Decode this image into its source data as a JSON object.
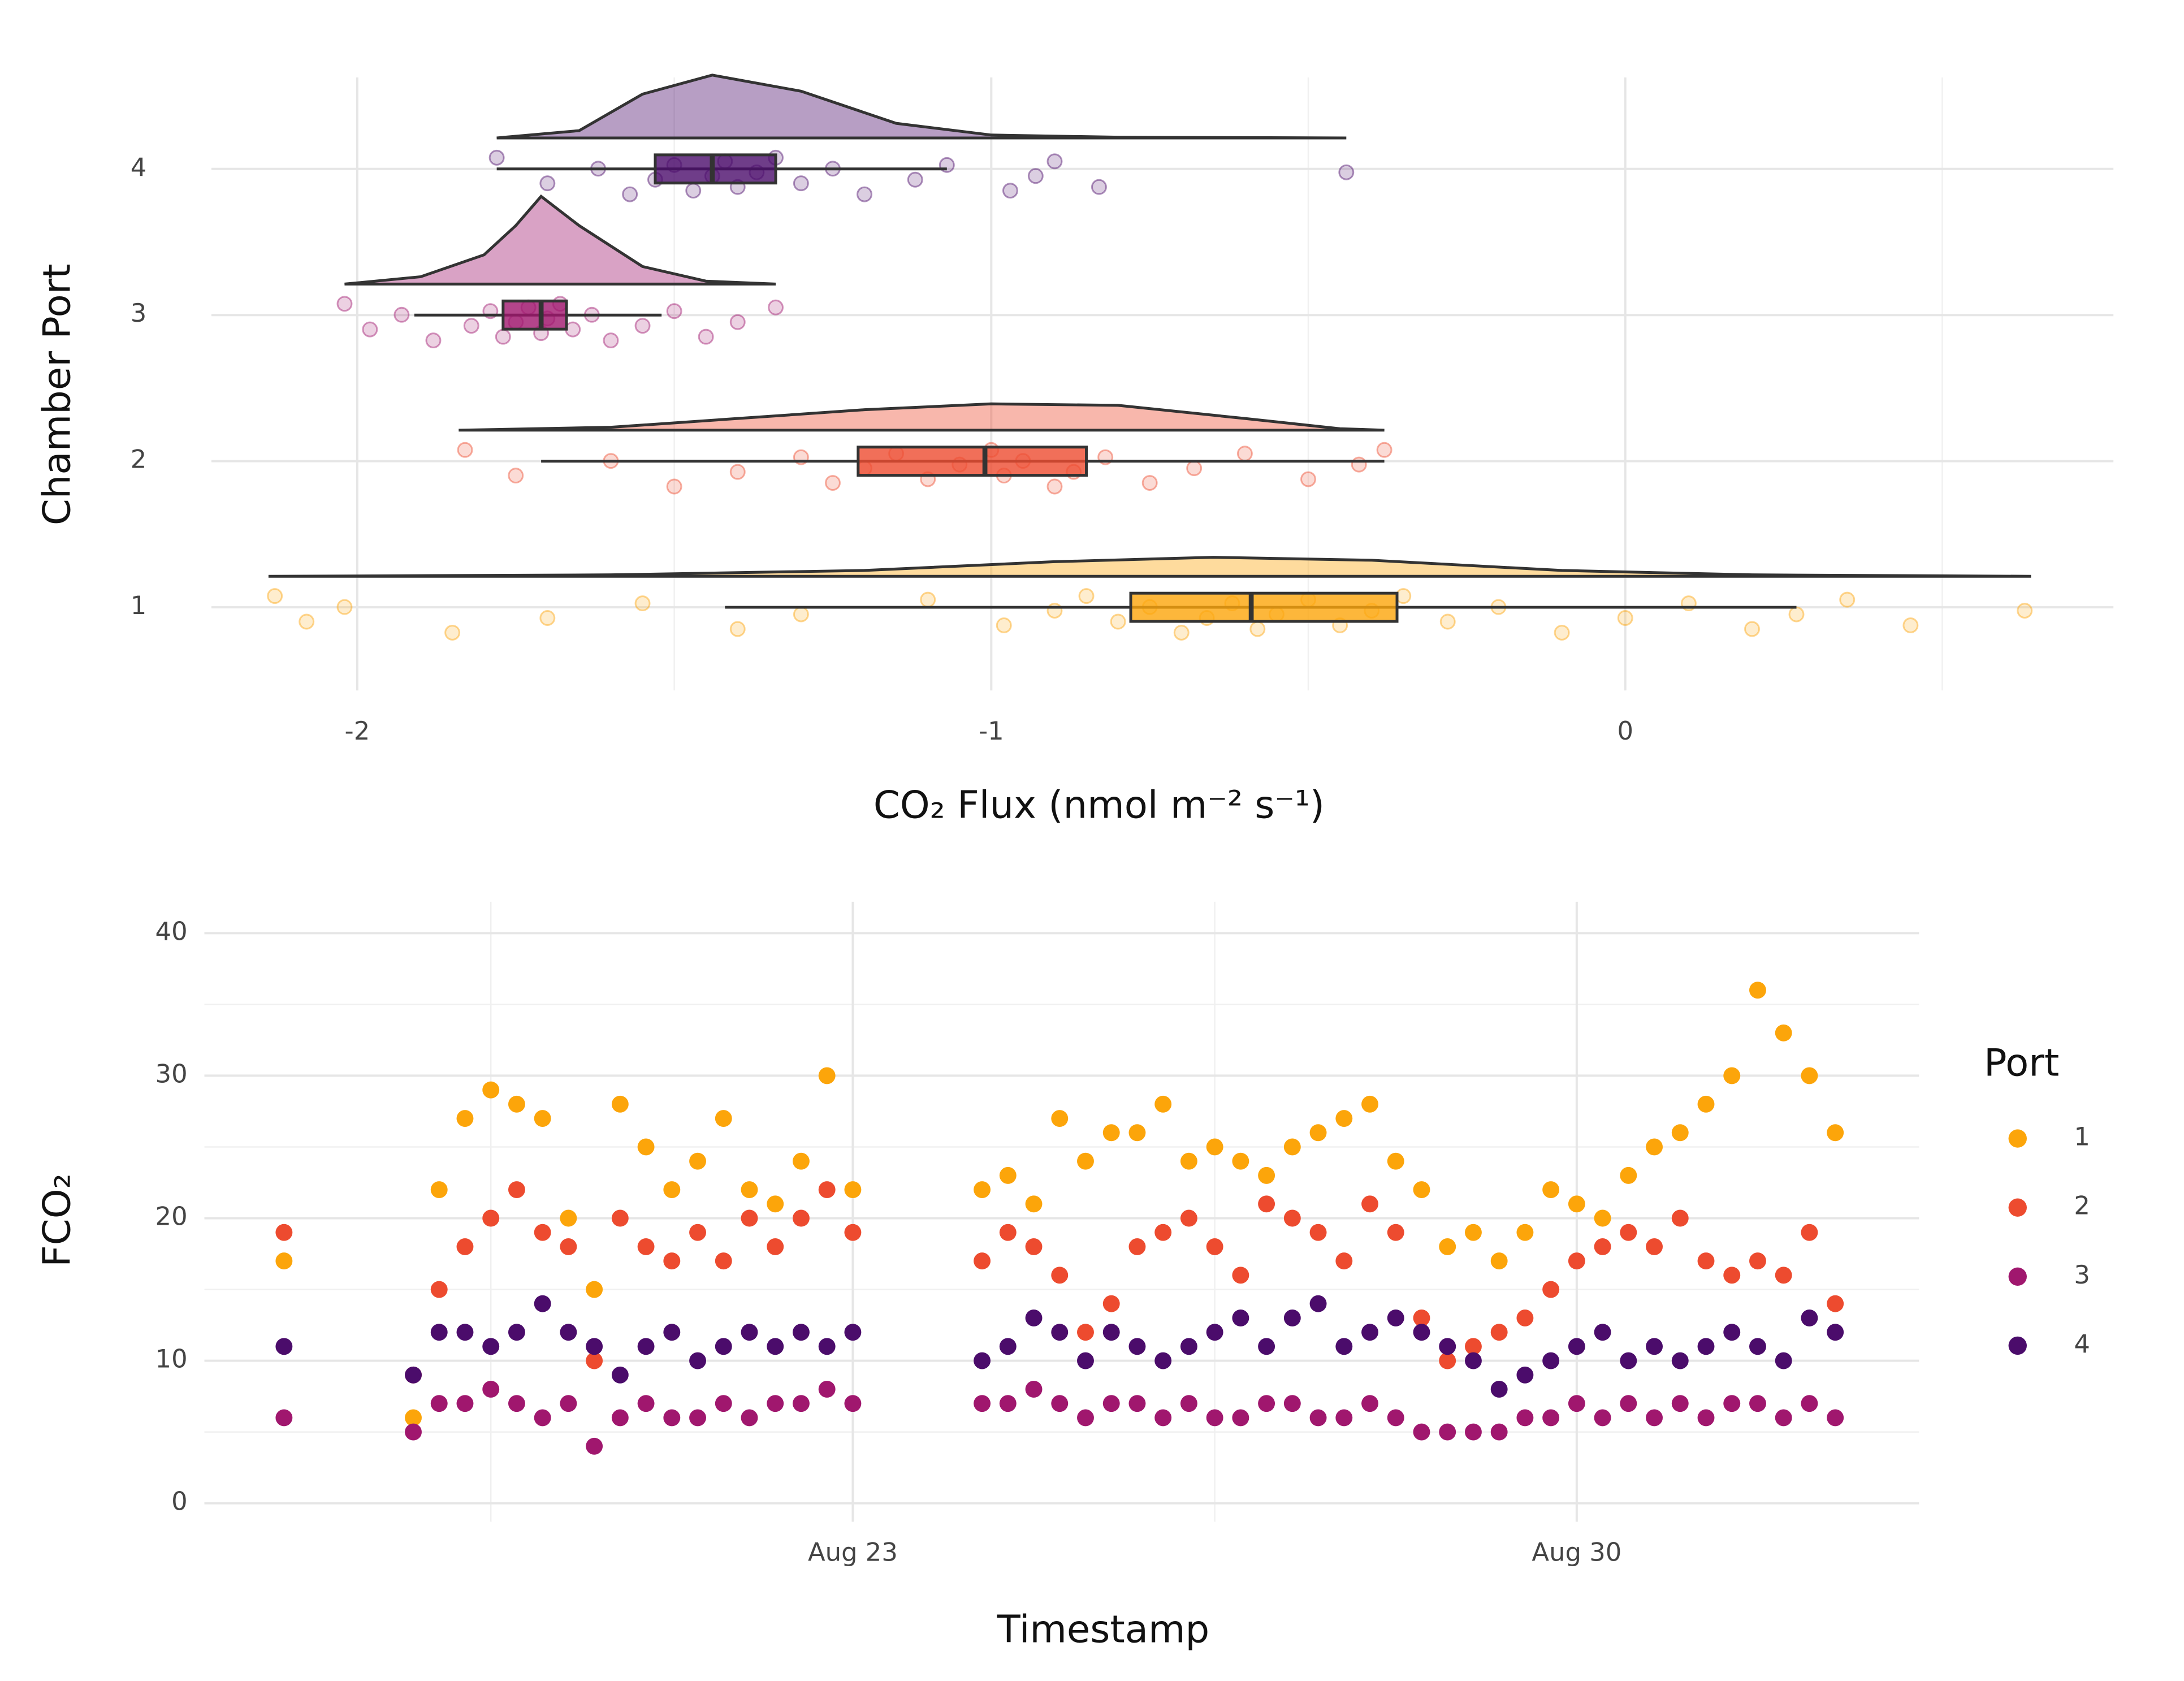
{
  "chart_data": [
    {
      "type": "raincloud",
      "xlabel": "CO₂ Flux (nmol m⁻² s⁻¹)",
      "ylabel": "Chamber Port",
      "categories": [
        "1",
        "2",
        "3",
        "4"
      ],
      "xlim": [
        -2.23,
        0.77
      ],
      "xticks": [
        -2,
        -1,
        0
      ],
      "xminor": [
        -1.5,
        -0.5,
        0.5
      ],
      "grid": true,
      "series": [
        {
          "color": "#fca50a",
          "min": -1.42,
          "q1": -0.78,
          "median": -0.59,
          "q3": -0.36,
          "max": 0.27,
          "density_x": [
            -2.14,
            -1.6,
            -1.2,
            -0.9,
            -0.65,
            -0.4,
            -0.1,
            0.2,
            0.64
          ],
          "density": [
            0,
            0.01,
            0.04,
            0.1,
            0.13,
            0.11,
            0.04,
            0.01,
            0
          ],
          "points": [
            -2.13,
            -2.08,
            -2.02,
            -1.85,
            -1.7,
            -1.55,
            -1.4,
            -1.3,
            -1.1,
            -0.98,
            -0.9,
            -0.85,
            -0.8,
            -0.75,
            -0.7,
            -0.66,
            -0.62,
            -0.58,
            -0.55,
            -0.5,
            -0.45,
            -0.4,
            -0.35,
            -0.28,
            -0.2,
            -0.1,
            0.0,
            0.1,
            0.2,
            0.27,
            0.35,
            0.45,
            0.63
          ]
        },
        {
          "color": "#ed4b2f",
          "min": -1.71,
          "q1": -1.21,
          "median": -1.01,
          "q3": -0.85,
          "max": -0.38,
          "density_x": [
            -1.84,
            -1.6,
            -1.4,
            -1.2,
            -1.0,
            -0.8,
            -0.6,
            -0.45,
            -0.38
          ],
          "density": [
            0,
            0.02,
            0.08,
            0.14,
            0.18,
            0.17,
            0.08,
            0.01,
            0
          ],
          "points": [
            -1.83,
            -1.75,
            -1.6,
            -1.5,
            -1.4,
            -1.3,
            -1.25,
            -1.2,
            -1.15,
            -1.1,
            -1.05,
            -1.0,
            -0.98,
            -0.95,
            -0.9,
            -0.87,
            -0.82,
            -0.75,
            -0.68,
            -0.6,
            -0.5,
            -0.42,
            -0.38
          ]
        },
        {
          "color": "#a0176e",
          "min": -1.91,
          "q1": -1.77,
          "median": -1.71,
          "q3": -1.67,
          "max": -1.52,
          "density_x": [
            -2.02,
            -1.9,
            -1.8,
            -1.75,
            -1.71,
            -1.65,
            -1.55,
            -1.45,
            -1.34
          ],
          "density": [
            0,
            0.05,
            0.2,
            0.4,
            0.6,
            0.4,
            0.12,
            0.02,
            0
          ],
          "points": [
            -2.02,
            -1.98,
            -1.93,
            -1.88,
            -1.82,
            -1.79,
            -1.77,
            -1.75,
            -1.73,
            -1.71,
            -1.7,
            -1.68,
            -1.66,
            -1.63,
            -1.6,
            -1.55,
            -1.5,
            -1.45,
            -1.4,
            -1.34
          ]
        },
        {
          "color": "#4b0c6b",
          "min": -1.78,
          "q1": -1.53,
          "median": -1.44,
          "q3": -1.34,
          "max": -1.07,
          "density_x": [
            -1.78,
            -1.65,
            -1.55,
            -1.44,
            -1.3,
            -1.15,
            -1.0,
            -0.8,
            -0.44
          ],
          "density": [
            0,
            0.05,
            0.3,
            0.43,
            0.32,
            0.1,
            0.02,
            0.005,
            0
          ],
          "points": [
            -1.78,
            -1.7,
            -1.62,
            -1.57,
            -1.53,
            -1.5,
            -1.47,
            -1.44,
            -1.42,
            -1.4,
            -1.37,
            -1.34,
            -1.3,
            -1.25,
            -1.2,
            -1.12,
            -1.07,
            -0.97,
            -0.93,
            -0.9,
            -0.83,
            -0.44
          ]
        }
      ]
    },
    {
      "type": "scatter",
      "xlabel": "Timestamp",
      "ylabel": "FCO₂",
      "legend_title": "Port",
      "legend": "right",
      "xlim": [
        16.73,
        33.31
      ],
      "xticks": [
        {
          "value": 23,
          "label": "Aug 23"
        },
        {
          "value": 30,
          "label": "Aug 30"
        }
      ],
      "xminor": [
        19.5,
        26.5
      ],
      "ylim": [
        -1.3,
        42.2
      ],
      "yticks": [
        0,
        10,
        20,
        30,
        40
      ],
      "yminor": [
        5,
        15,
        25,
        35
      ],
      "grid": true,
      "x": [
        17.5,
        18.75,
        19,
        19.25,
        19.5,
        19.75,
        20,
        20.25,
        20.5,
        20.75,
        21,
        21.25,
        21.5,
        21.75,
        22,
        22.25,
        22.5,
        22.75,
        23,
        24.25,
        24.5,
        24.75,
        25,
        25.25,
        25.5,
        25.75,
        26,
        26.25,
        26.5,
        26.75,
        27,
        27.25,
        27.5,
        27.75,
        28,
        28.25,
        28.5,
        28.75,
        29,
        29.25,
        29.5,
        29.75,
        30,
        30.25,
        30.5,
        30.75,
        31,
        31.25,
        31.5,
        31.75,
        32,
        32.25,
        32.5
      ],
      "series": [
        {
          "name": "1",
          "color": "#fca50a",
          "values": [
            17,
            6,
            22,
            27,
            29,
            28,
            27,
            20,
            15,
            28,
            25,
            22,
            24,
            27,
            22,
            21,
            24,
            30,
            22,
            22,
            23,
            21,
            27,
            24,
            26,
            26,
            28,
            24,
            25,
            24,
            23,
            25,
            26,
            27,
            28,
            24,
            22,
            18,
            19,
            17,
            19,
            22,
            21,
            20,
            23,
            25,
            26,
            28,
            30,
            36,
            33,
            30,
            26
          ]
        },
        {
          "name": "2",
          "color": "#ed4b2f",
          "values": [
            19,
            9,
            15,
            18,
            20,
            22,
            19,
            18,
            10,
            20,
            18,
            17,
            19,
            17,
            20,
            18,
            20,
            22,
            19,
            17,
            19,
            18,
            16,
            12,
            14,
            18,
            19,
            20,
            18,
            16,
            21,
            20,
            19,
            17,
            21,
            19,
            13,
            10,
            11,
            12,
            13,
            15,
            17,
            18,
            19,
            18,
            20,
            17,
            16,
            17,
            16,
            19,
            14
          ]
        },
        {
          "name": "3",
          "color": "#a0176e",
          "values": [
            6,
            5,
            7,
            7,
            8,
            7,
            6,
            7,
            4,
            6,
            7,
            6,
            6,
            7,
            6,
            7,
            7,
            8,
            7,
            7,
            7,
            8,
            7,
            6,
            7,
            7,
            6,
            7,
            6,
            6,
            7,
            7,
            6,
            6,
            7,
            6,
            5,
            5,
            5,
            5,
            6,
            6,
            7,
            6,
            7,
            6,
            7,
            6,
            7,
            7,
            6,
            7,
            6
          ]
        },
        {
          "name": "4",
          "color": "#4b0c6b",
          "values": [
            11,
            9,
            12,
            12,
            11,
            12,
            14,
            12,
            11,
            9,
            11,
            12,
            10,
            11,
            12,
            11,
            12,
            11,
            12,
            10,
            11,
            13,
            12,
            10,
            12,
            11,
            10,
            11,
            12,
            13,
            11,
            13,
            14,
            11,
            12,
            13,
            12,
            11,
            10,
            8,
            9,
            10,
            11,
            12,
            10,
            11,
            10,
            11,
            12,
            11,
            10,
            13,
            12
          ]
        }
      ]
    }
  ]
}
